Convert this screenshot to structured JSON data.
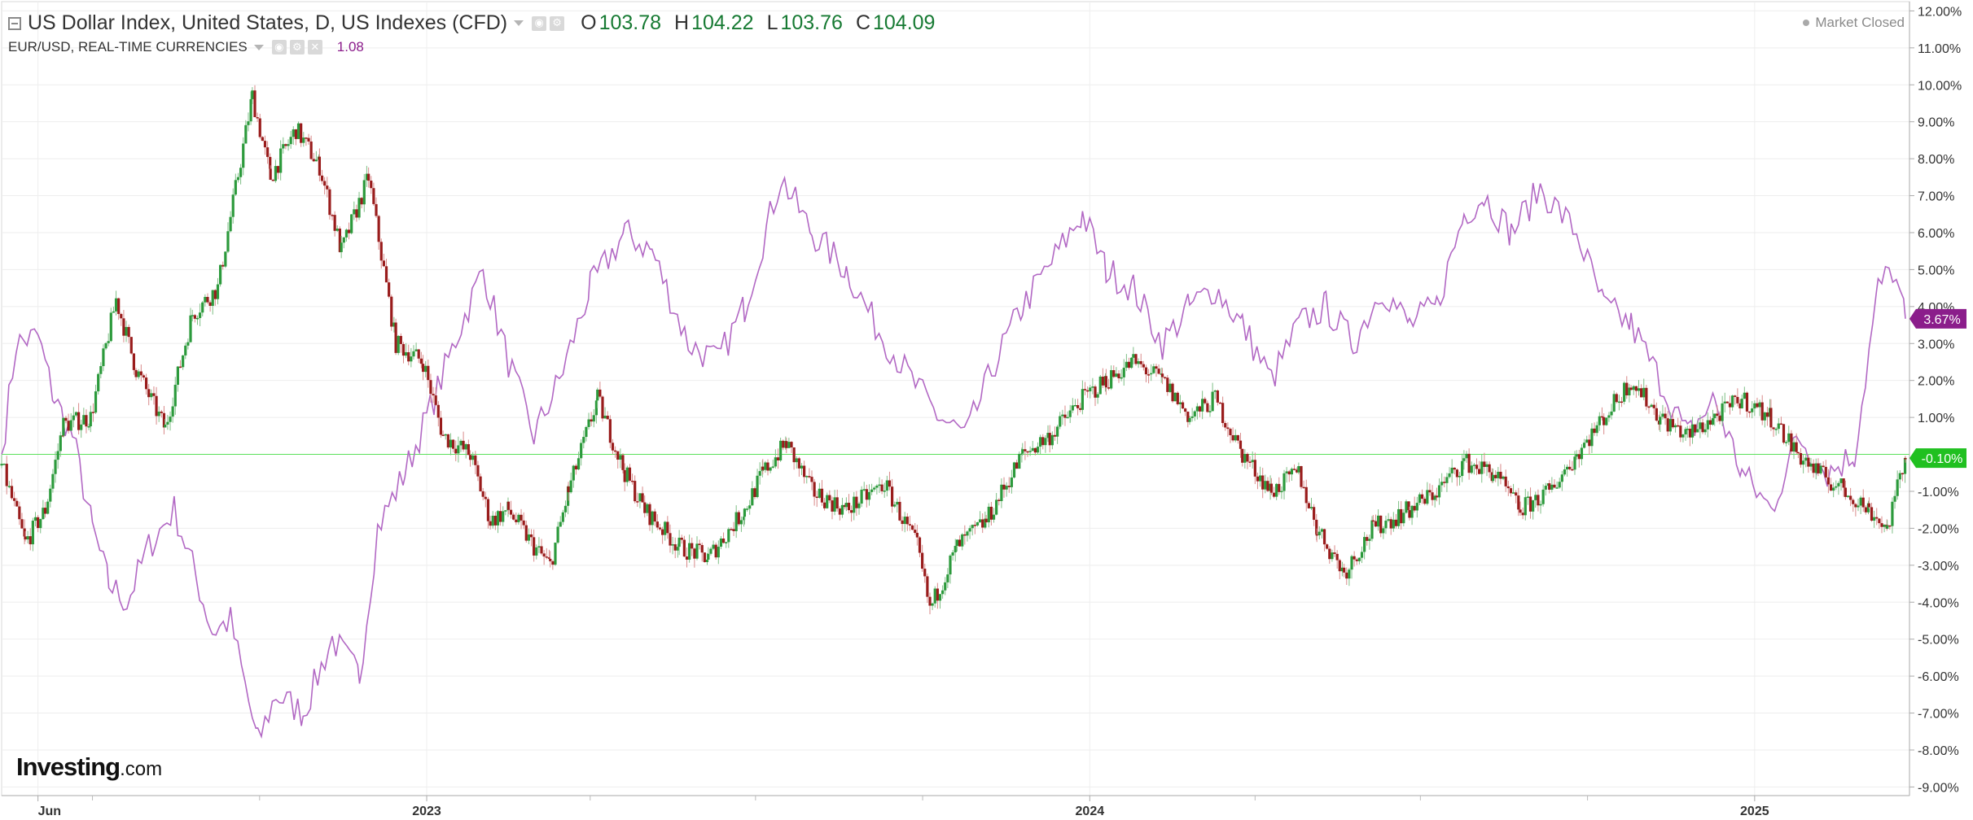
{
  "header": {
    "title": "US Dollar Index, United States, D, US Indexes (CFD)",
    "ohlc": [
      {
        "key": "O",
        "value": "103.78"
      },
      {
        "key": "H",
        "value": "104.22"
      },
      {
        "key": "L",
        "value": "103.76"
      },
      {
        "key": "C",
        "value": "104.09"
      }
    ],
    "compare_label": "EUR/USD, REAL-TIME CURRENCIES",
    "compare_value": "1.08",
    "market_status": "Market Closed"
  },
  "logo": {
    "brand": "Investing",
    "suffix": ".com"
  },
  "colors": {
    "up": "#2c9a3c",
    "down": "#991c1c",
    "compare_line": "#b268c4",
    "compare_tag": "#8b1d8b",
    "zero_line": "#5be05b",
    "current_tag": "#20c020",
    "grid": "#eeeeee"
  },
  "chart_data": {
    "type": "line",
    "ylim": [
      -9,
      12
    ],
    "y_ticks": [
      "12.00%",
      "11.00%",
      "10.00%",
      "9.00%",
      "8.00%",
      "7.00%",
      "6.00%",
      "5.00%",
      "4.00%",
      "3.00%",
      "2.00%",
      "1.00%",
      "-1.00%",
      "-2.00%",
      "-3.00%",
      "-4.00%",
      "-5.00%",
      "-6.00%",
      "-7.00%",
      "-8.00%",
      "-9.00%"
    ],
    "x_labels": [
      {
        "label": "Jun",
        "date": "2022-06-01"
      },
      {
        "label": "2023",
        "date": "2023-01-01"
      },
      {
        "label": "2024",
        "date": "2024-01-01"
      },
      {
        "label": "2025",
        "date": "2025-01-01"
      }
    ],
    "x_range": [
      "2022-05-12",
      "2025-03-25"
    ],
    "zero_line": 0,
    "series": [
      {
        "name": "US Dollar Index",
        "style": "candlestick",
        "current_label": "-0.10%",
        "points": [
          [
            "2022-05-12",
            -0.3
          ],
          [
            "2022-05-25",
            -2.4
          ],
          [
            "2022-06-05",
            -1.5
          ],
          [
            "2022-06-15",
            0.8
          ],
          [
            "2022-06-30",
            1.0
          ],
          [
            "2022-07-14",
            4.2
          ],
          [
            "2022-07-25",
            2.3
          ],
          [
            "2022-08-10",
            0.7
          ],
          [
            "2022-08-25",
            3.8
          ],
          [
            "2022-09-08",
            4.5
          ],
          [
            "2022-09-27",
            9.7
          ],
          [
            "2022-10-07",
            7.5
          ],
          [
            "2022-10-21",
            8.8
          ],
          [
            "2022-11-03",
            7.8
          ],
          [
            "2022-11-15",
            5.5
          ],
          [
            "2022-11-30",
            7.5
          ],
          [
            "2022-12-15",
            3.0
          ],
          [
            "2022-12-30",
            2.5
          ],
          [
            "2023-01-10",
            0.5
          ],
          [
            "2023-01-25",
            0.0
          ],
          [
            "2023-02-05",
            -1.8
          ],
          [
            "2023-02-15",
            -1.5
          ],
          [
            "2023-03-01",
            -2.5
          ],
          [
            "2023-03-10",
            -3.0
          ],
          [
            "2023-03-20",
            -1.0
          ],
          [
            "2023-04-05",
            1.5
          ],
          [
            "2023-04-20",
            -0.5
          ],
          [
            "2023-05-01",
            -1.5
          ],
          [
            "2023-05-20",
            -2.5
          ],
          [
            "2023-06-05",
            -2.8
          ],
          [
            "2023-06-25",
            -1.5
          ],
          [
            "2023-07-05",
            -0.5
          ],
          [
            "2023-07-18",
            0.3
          ],
          [
            "2023-08-01",
            -1.0
          ],
          [
            "2023-08-20",
            -1.5
          ],
          [
            "2023-09-10",
            -0.8
          ],
          [
            "2023-09-28",
            -2.5
          ],
          [
            "2023-10-05",
            -4.2
          ],
          [
            "2023-10-20",
            -2.5
          ],
          [
            "2023-11-05",
            -1.8
          ],
          [
            "2023-11-25",
            0.0
          ],
          [
            "2023-12-10",
            0.5
          ],
          [
            "2023-12-28",
            1.5
          ],
          [
            "2024-01-10",
            2.0
          ],
          [
            "2024-01-25",
            2.5
          ],
          [
            "2024-02-10",
            2.0
          ],
          [
            "2024-02-25",
            1.0
          ],
          [
            "2024-03-10",
            1.5
          ],
          [
            "2024-03-25",
            0.0
          ],
          [
            "2024-04-10",
            -1.0
          ],
          [
            "2024-04-25",
            -0.5
          ],
          [
            "2024-05-05",
            -2.0
          ],
          [
            "2024-05-20",
            -3.2
          ],
          [
            "2024-06-05",
            -2.0
          ],
          [
            "2024-06-25",
            -1.5
          ],
          [
            "2024-07-10",
            -1.0
          ],
          [
            "2024-07-25",
            -0.2
          ],
          [
            "2024-08-10",
            -0.5
          ],
          [
            "2024-08-25",
            -1.5
          ],
          [
            "2024-09-10",
            -1.0
          ],
          [
            "2024-09-25",
            0.0
          ],
          [
            "2024-10-10",
            1.0
          ],
          [
            "2024-10-25",
            2.0
          ],
          [
            "2024-11-10",
            1.0
          ],
          [
            "2024-11-25",
            0.5
          ],
          [
            "2024-12-10",
            1.0
          ],
          [
            "2024-12-25",
            1.5
          ],
          [
            "2025-01-10",
            1.0
          ],
          [
            "2025-01-25",
            0.0
          ],
          [
            "2025-02-05",
            -0.5
          ],
          [
            "2025-02-20",
            -1.0
          ],
          [
            "2025-03-05",
            -1.5
          ],
          [
            "2025-03-15",
            -2.0
          ],
          [
            "2025-03-25",
            -0.1
          ]
        ]
      },
      {
        "name": "EUR/USD",
        "style": "line",
        "current_label": "3.67%",
        "points": [
          [
            "2022-05-12",
            0.0
          ],
          [
            "2022-05-20",
            3.0
          ],
          [
            "2022-06-01",
            3.2
          ],
          [
            "2022-06-10",
            1.5
          ],
          [
            "2022-06-20",
            0.5
          ],
          [
            "2022-07-01",
            -2.0
          ],
          [
            "2022-07-10",
            -3.5
          ],
          [
            "2022-07-20",
            -4.0
          ],
          [
            "2022-08-01",
            -2.5
          ],
          [
            "2022-08-15",
            -1.5
          ],
          [
            "2022-08-25",
            -3.0
          ],
          [
            "2022-09-05",
            -4.8
          ],
          [
            "2022-09-15",
            -4.5
          ],
          [
            "2022-09-30",
            -7.8
          ],
          [
            "2022-10-10",
            -6.5
          ],
          [
            "2022-10-25",
            -7.0
          ],
          [
            "2022-11-10",
            -5.0
          ],
          [
            "2022-11-25",
            -6.0
          ],
          [
            "2022-12-05",
            -2.0
          ],
          [
            "2022-12-20",
            -0.5
          ],
          [
            "2023-01-05",
            1.5
          ],
          [
            "2023-01-20",
            3.5
          ],
          [
            "2023-02-01",
            5.0
          ],
          [
            "2023-02-15",
            2.5
          ],
          [
            "2023-03-01",
            0.5
          ],
          [
            "2023-03-15",
            2.0
          ],
          [
            "2023-04-01",
            4.5
          ],
          [
            "2023-04-20",
            6.0
          ],
          [
            "2023-05-05",
            5.5
          ],
          [
            "2023-05-25",
            3.0
          ],
          [
            "2023-06-10",
            2.5
          ],
          [
            "2023-06-25",
            4.0
          ],
          [
            "2023-07-15",
            7.5
          ],
          [
            "2023-08-01",
            6.0
          ],
          [
            "2023-08-20",
            5.0
          ],
          [
            "2023-09-05",
            3.5
          ],
          [
            "2023-09-25",
            2.0
          ],
          [
            "2023-10-10",
            1.0
          ],
          [
            "2023-10-25",
            0.5
          ],
          [
            "2023-11-10",
            2.5
          ],
          [
            "2023-11-25",
            4.0
          ],
          [
            "2023-12-15",
            5.5
          ],
          [
            "2023-12-28",
            6.5
          ],
          [
            "2024-01-10",
            5.0
          ],
          [
            "2024-01-25",
            4.5
          ],
          [
            "2024-02-10",
            3.0
          ],
          [
            "2024-02-25",
            4.0
          ],
          [
            "2024-03-10",
            4.5
          ],
          [
            "2024-03-25",
            3.5
          ],
          [
            "2024-04-10",
            2.0
          ],
          [
            "2024-04-25",
            3.5
          ],
          [
            "2024-05-10",
            4.0
          ],
          [
            "2024-05-25",
            3.0
          ],
          [
            "2024-06-10",
            4.5
          ],
          [
            "2024-06-25",
            3.5
          ],
          [
            "2024-07-10",
            4.0
          ],
          [
            "2024-07-25",
            6.5
          ],
          [
            "2024-08-05",
            7.0
          ],
          [
            "2024-08-20",
            6.0
          ],
          [
            "2024-09-05",
            7.2
          ],
          [
            "2024-09-25",
            6.0
          ],
          [
            "2024-10-10",
            4.0
          ],
          [
            "2024-10-25",
            3.5
          ],
          [
            "2024-11-10",
            2.0
          ],
          [
            "2024-11-25",
            0.5
          ],
          [
            "2024-12-10",
            1.5
          ],
          [
            "2024-12-25",
            -0.5
          ],
          [
            "2025-01-10",
            -1.5
          ],
          [
            "2025-01-25",
            0.5
          ],
          [
            "2025-02-10",
            -0.5
          ],
          [
            "2025-02-25",
            0.0
          ],
          [
            "2025-03-10",
            4.5
          ],
          [
            "2025-03-18",
            5.0
          ],
          [
            "2025-03-25",
            3.67
          ]
        ]
      }
    ]
  }
}
